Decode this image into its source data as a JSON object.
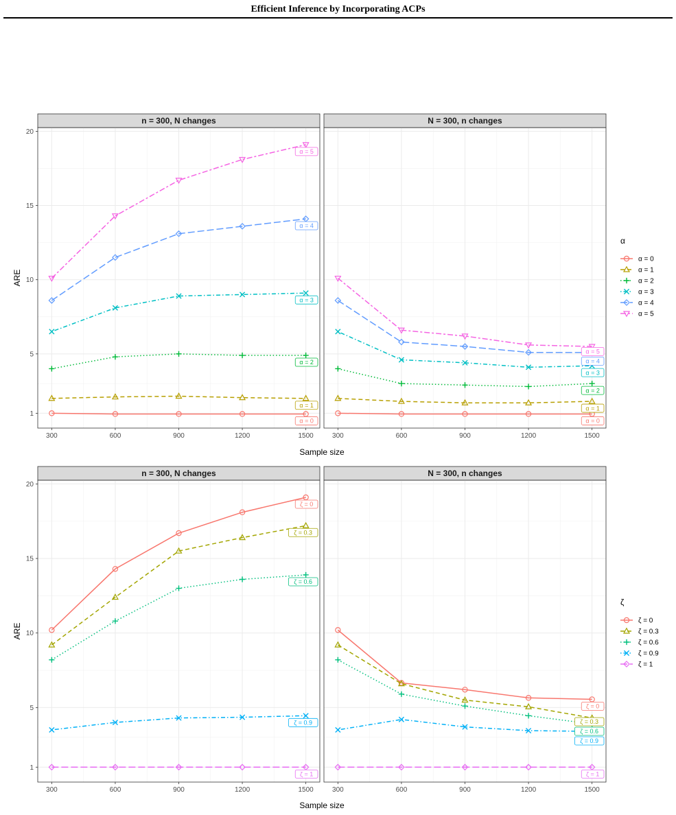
{
  "header": {
    "title": "Efficient Inference by Incorporating ACPs"
  },
  "chart_data": [
    {
      "type": "line",
      "title": "n = 300, N changes",
      "xlabel": "Sample size",
      "ylabel": "ARE",
      "x": [
        300,
        600,
        900,
        1200,
        1500
      ],
      "yticks": [
        1,
        5,
        10,
        15,
        20
      ],
      "legend_title": "α",
      "series": [
        {
          "name": "α = 0",
          "label": "α = 0",
          "color": "#F8766D",
          "marker": "circle",
          "dash": "solid",
          "values": [
            1.0,
            0.95,
            0.95,
            0.95,
            0.95
          ]
        },
        {
          "name": "α = 1",
          "label": "α = 1",
          "color": "#B79F00",
          "marker": "triangle",
          "dash": "dashed",
          "values": [
            2.0,
            2.1,
            2.15,
            2.05,
            2.0
          ]
        },
        {
          "name": "α = 2",
          "label": "α = 2",
          "color": "#00BA38",
          "marker": "plus",
          "dash": "dotted",
          "values": [
            4.0,
            4.8,
            5.0,
            4.9,
            4.9
          ]
        },
        {
          "name": "α = 3",
          "label": "α = 3",
          "color": "#00BFC4",
          "marker": "cross",
          "dash": "dotdash",
          "values": [
            6.5,
            8.1,
            8.9,
            9.0,
            9.1
          ]
        },
        {
          "name": "α = 4",
          "label": "α = 4",
          "color": "#619CFF",
          "marker": "diamond",
          "dash": "longdash",
          "values": [
            8.6,
            11.5,
            13.1,
            13.6,
            14.1
          ]
        },
        {
          "name": "α = 5",
          "label": "α = 5",
          "color": "#F564E3",
          "marker": "triangle-down",
          "dash": "twodash",
          "values": [
            10.1,
            14.3,
            16.7,
            18.1,
            19.1
          ]
        }
      ]
    },
    {
      "type": "line",
      "title": "N = 300, n changes",
      "xlabel": "Sample size",
      "ylabel": "ARE",
      "x": [
        300,
        600,
        900,
        1200,
        1500
      ],
      "yticks": [
        1,
        5,
        10,
        15,
        20
      ],
      "legend_title": "α",
      "series": [
        {
          "name": "α = 0",
          "label": "α = 0",
          "color": "#F8766D",
          "marker": "circle",
          "dash": "solid",
          "values": [
            1.0,
            0.95,
            0.95,
            0.95,
            0.95
          ]
        },
        {
          "name": "α = 1",
          "label": "α = 1",
          "color": "#B79F00",
          "marker": "triangle",
          "dash": "dashed",
          "values": [
            2.0,
            1.8,
            1.7,
            1.7,
            1.8
          ]
        },
        {
          "name": "α = 2",
          "label": "α = 2",
          "color": "#00BA38",
          "marker": "plus",
          "dash": "dotted",
          "values": [
            4.0,
            3.0,
            2.9,
            2.8,
            3.0
          ]
        },
        {
          "name": "α = 3",
          "label": "α = 3",
          "color": "#00BFC4",
          "marker": "cross",
          "dash": "dotdash",
          "values": [
            6.5,
            4.6,
            4.4,
            4.1,
            4.2
          ]
        },
        {
          "name": "α = 4",
          "label": "α = 4",
          "color": "#619CFF",
          "marker": "diamond",
          "dash": "longdash",
          "values": [
            8.6,
            5.8,
            5.5,
            5.1,
            5.1
          ]
        },
        {
          "name": "α = 5",
          "label": "α = 5",
          "color": "#F564E3",
          "marker": "triangle-down",
          "dash": "twodash",
          "values": [
            10.1,
            6.6,
            6.2,
            5.6,
            5.5
          ]
        }
      ]
    },
    {
      "type": "line",
      "title": "n = 300, N changes",
      "xlabel": "Sample size",
      "ylabel": "ARE",
      "x": [
        300,
        600,
        900,
        1200,
        1500
      ],
      "yticks": [
        1,
        5,
        10,
        15,
        20
      ],
      "legend_title": "ζ",
      "series": [
        {
          "name": "ζ = 0",
          "label": "ζ = 0",
          "color": "#F8766D",
          "marker": "circle",
          "dash": "solid",
          "values": [
            10.2,
            14.3,
            16.7,
            18.1,
            19.1
          ]
        },
        {
          "name": "ζ = 0.3",
          "label": "ζ = 0.3",
          "color": "#A3A500",
          "marker": "triangle",
          "dash": "dashed",
          "values": [
            9.2,
            12.4,
            15.5,
            16.4,
            17.2
          ]
        },
        {
          "name": "ζ = 0.6",
          "label": "ζ = 0.6",
          "color": "#00BF7D",
          "marker": "plus",
          "dash": "dotted",
          "values": [
            8.2,
            10.8,
            13.0,
            13.6,
            13.9
          ]
        },
        {
          "name": "ζ = 0.9",
          "label": "ζ = 0.9",
          "color": "#00B0F6",
          "marker": "cross",
          "dash": "dotdash",
          "values": [
            3.5,
            4.0,
            4.3,
            4.35,
            4.45
          ]
        },
        {
          "name": "ζ = 1",
          "label": "ζ = 1",
          "color": "#E76BF3",
          "marker": "diamond",
          "dash": "longdash",
          "values": [
            1.0,
            1.0,
            1.0,
            1.0,
            1.0
          ]
        }
      ]
    },
    {
      "type": "line",
      "title": "N = 300, n changes",
      "xlabel": "Sample size",
      "ylabel": "ARE",
      "x": [
        300,
        600,
        900,
        1200,
        1500
      ],
      "yticks": [
        1,
        5,
        10,
        15,
        20
      ],
      "legend_title": "ζ",
      "series": [
        {
          "name": "ζ = 0",
          "label": "ζ = 0",
          "color": "#F8766D",
          "marker": "circle",
          "dash": "solid",
          "values": [
            10.2,
            6.65,
            6.2,
            5.65,
            5.55
          ]
        },
        {
          "name": "ζ = 0.3",
          "label": "ζ = 0.3",
          "color": "#A3A500",
          "marker": "triangle",
          "dash": "dashed",
          "values": [
            9.2,
            6.6,
            5.5,
            5.05,
            4.3
          ]
        },
        {
          "name": "ζ = 0.6",
          "label": "ζ = 0.6",
          "color": "#00BF7D",
          "marker": "plus",
          "dash": "dotted",
          "values": [
            8.2,
            5.9,
            5.1,
            4.45,
            3.9
          ]
        },
        {
          "name": "ζ = 0.9",
          "label": "ζ = 0.9",
          "color": "#00B0F6",
          "marker": "cross",
          "dash": "dotdash",
          "values": [
            3.5,
            4.2,
            3.7,
            3.45,
            3.4
          ]
        },
        {
          "name": "ζ = 1",
          "label": "ζ = 1",
          "color": "#E76BF3",
          "marker": "diamond",
          "dash": "longdash",
          "values": [
            1.0,
            1.0,
            1.0,
            1.0,
            1.0
          ]
        }
      ]
    }
  ]
}
